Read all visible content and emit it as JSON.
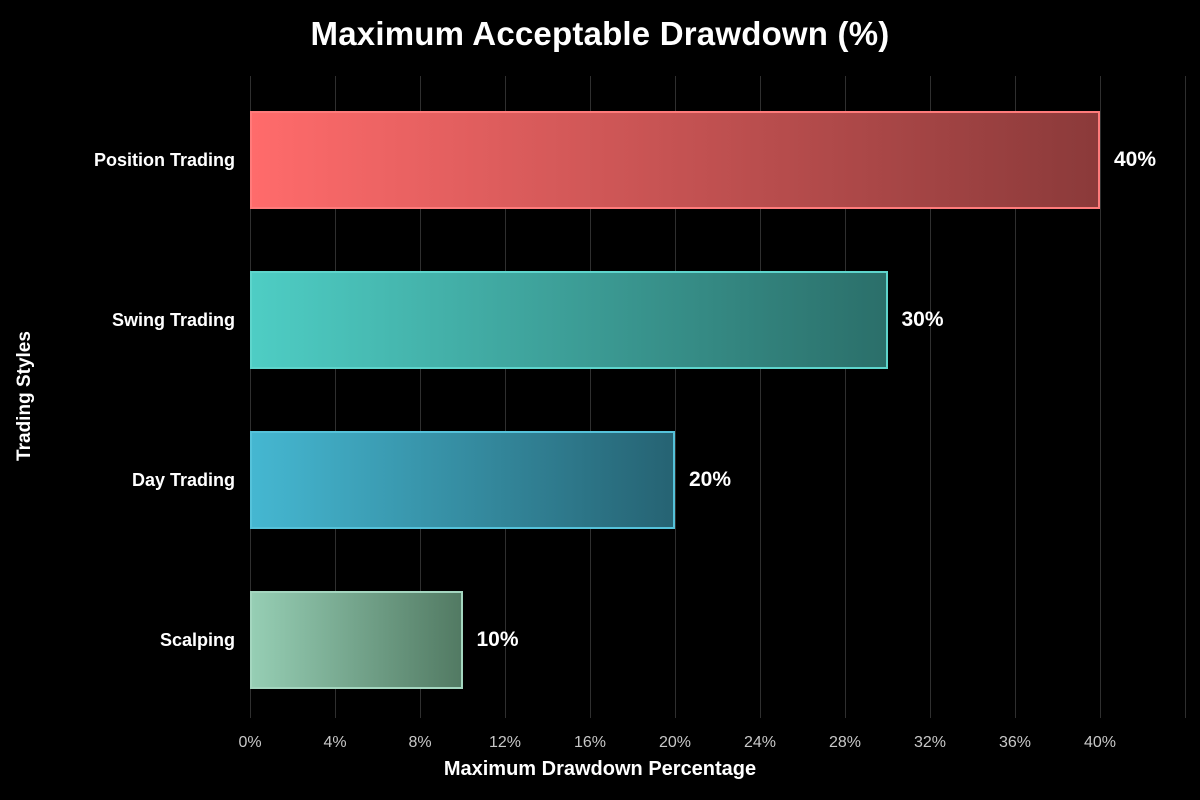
{
  "chart_data": {
    "type": "bar",
    "orientation": "horizontal",
    "title": "Maximum Acceptable Drawdown (%)",
    "xlabel": "Maximum Drawdown Percentage",
    "ylabel": "Trading Styles",
    "categories": [
      "Position Trading",
      "Swing Trading",
      "Day Trading",
      "Scalping"
    ],
    "values": [
      40,
      30,
      20,
      10
    ],
    "value_labels": [
      "40%",
      "30%",
      "20%",
      "10%"
    ],
    "bar_colors": [
      {
        "start": "#FF6B6B",
        "end": "#8B3A3A",
        "border": "#FF7B7B"
      },
      {
        "start": "#4ECDC4",
        "end": "#2B6F6A",
        "border": "#5ED5CC"
      },
      {
        "start": "#45B7D1",
        "end": "#266373",
        "border": "#55C2DA"
      },
      {
        "start": "#96CEB4",
        "end": "#527A63",
        "border": "#A4D6BF"
      }
    ],
    "x_ticks": [
      "0%",
      "4%",
      "8%",
      "12%",
      "16%",
      "20%",
      "24%",
      "28%",
      "32%",
      "36%",
      "40%"
    ],
    "x_tick_values": [
      0,
      4,
      8,
      12,
      16,
      20,
      24,
      28,
      32,
      36,
      40
    ],
    "grid_values": [
      0,
      4,
      8,
      12,
      16,
      20,
      24,
      28,
      32,
      36,
      40,
      44
    ],
    "xlim": [
      0,
      44
    ],
    "grid": true,
    "legend": "none",
    "colors": {
      "background": "#000000",
      "grid": "#2f2f2f",
      "tick_label": "#c8c8c8",
      "text": "#ffffff"
    }
  }
}
